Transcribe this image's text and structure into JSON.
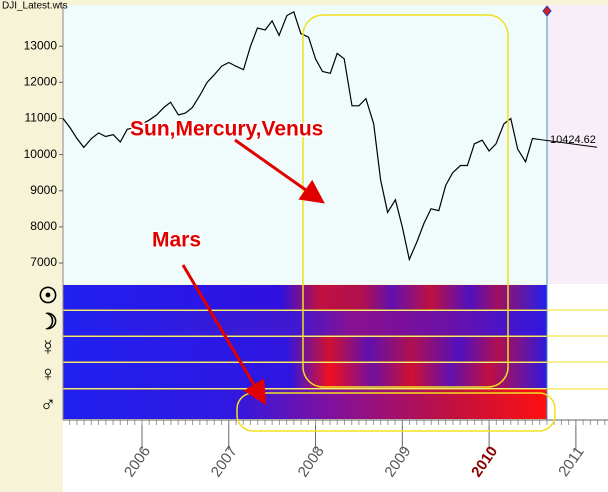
{
  "chart_data": {
    "type": "line",
    "title": "DJI_Latest.wts",
    "x": [
      2005.09,
      2005.17,
      2005.25,
      2005.33,
      2005.42,
      2005.5,
      2005.58,
      2005.67,
      2005.75,
      2005.83,
      2005.92,
      2006.0,
      2006.08,
      2006.17,
      2006.25,
      2006.33,
      2006.42,
      2006.5,
      2006.58,
      2006.67,
      2006.75,
      2006.83,
      2006.92,
      2007.0,
      2007.08,
      2007.17,
      2007.25,
      2007.33,
      2007.42,
      2007.5,
      2007.58,
      2007.67,
      2007.75,
      2007.83,
      2007.92,
      2008.0,
      2008.08,
      2008.17,
      2008.25,
      2008.33,
      2008.42,
      2008.5,
      2008.58,
      2008.67,
      2008.75,
      2008.83,
      2008.92,
      2009.0,
      2009.08,
      2009.17,
      2009.25,
      2009.33,
      2009.42,
      2009.5,
      2009.58,
      2009.67,
      2009.75,
      2009.83,
      2009.92,
      2010.0,
      2010.08,
      2010.17,
      2010.25,
      2010.33,
      2010.42,
      2010.5,
      2010.56
    ],
    "values": [
      11000,
      10750,
      10450,
      10200,
      10450,
      10600,
      10500,
      10550,
      10350,
      10700,
      10750,
      10850,
      10950,
      11100,
      11300,
      11450,
      11100,
      11150,
      11300,
      11650,
      12000,
      12200,
      12450,
      12550,
      12450,
      12350,
      13000,
      13500,
      13450,
      13700,
      13300,
      13850,
      13950,
      13350,
      13250,
      12650,
      12300,
      12250,
      12800,
      12650,
      11350,
      11350,
      11550,
      10850,
      9300,
      8400,
      8750,
      8000,
      7100,
      7600,
      8100,
      8500,
      8450,
      9150,
      9500,
      9700,
      9700,
      10300,
      10400,
      10100,
      10300,
      10850,
      11000,
      10150,
      9800,
      10450,
      10424.62
    ],
    "color": "#000000",
    "xlim": [
      2005.09,
      2011.37
    ],
    "xticks": [
      2006,
      2007,
      2008,
      2009,
      2010,
      2011
    ],
    "ylim": [
      6420,
      14140
    ],
    "yticks": [
      7000,
      8000,
      9000,
      10000,
      11000,
      12000,
      13000
    ],
    "heatmap_rows": [
      "☉",
      "☽",
      "☿",
      "♀",
      "♂"
    ],
    "annotations": [
      "Sun,Mercury,Venus",
      "Mars"
    ]
  }
}
